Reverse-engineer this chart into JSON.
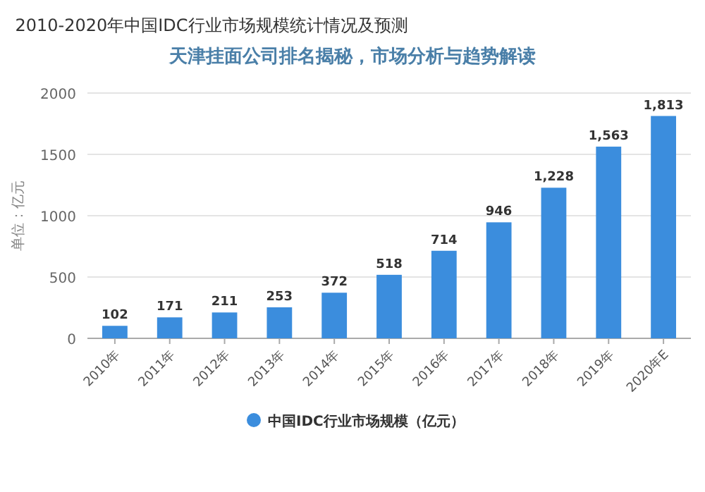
{
  "chart_data": {
    "type": "bar",
    "title": "2010-2020年中国IDC行业市场规模统计情况及预测",
    "subtitle": "天津挂面公司排名揭秘，市场分析与趋势解读",
    "ylabel": "单位：亿元",
    "categories": [
      "2010年",
      "2011年",
      "2012年",
      "2013年",
      "2014年",
      "2015年",
      "2016年",
      "2017年",
      "2018年",
      "2019年",
      "2020年E"
    ],
    "series": [
      {
        "name": "中国IDC行业市场规模（亿元）",
        "color": "#3b8ddd",
        "values": [
          102,
          171,
          211,
          253,
          372,
          518,
          714,
          946,
          1228,
          1563,
          1813
        ],
        "value_labels": [
          "102",
          "171",
          "211",
          "253",
          "372",
          "518",
          "714",
          "946",
          "1,228",
          "1,563",
          "1,813"
        ]
      }
    ],
    "ylim": [
      0,
      2000
    ],
    "yticks": [
      0,
      500,
      1000,
      1500,
      2000
    ],
    "grid": "y",
    "legend": "bottom"
  }
}
